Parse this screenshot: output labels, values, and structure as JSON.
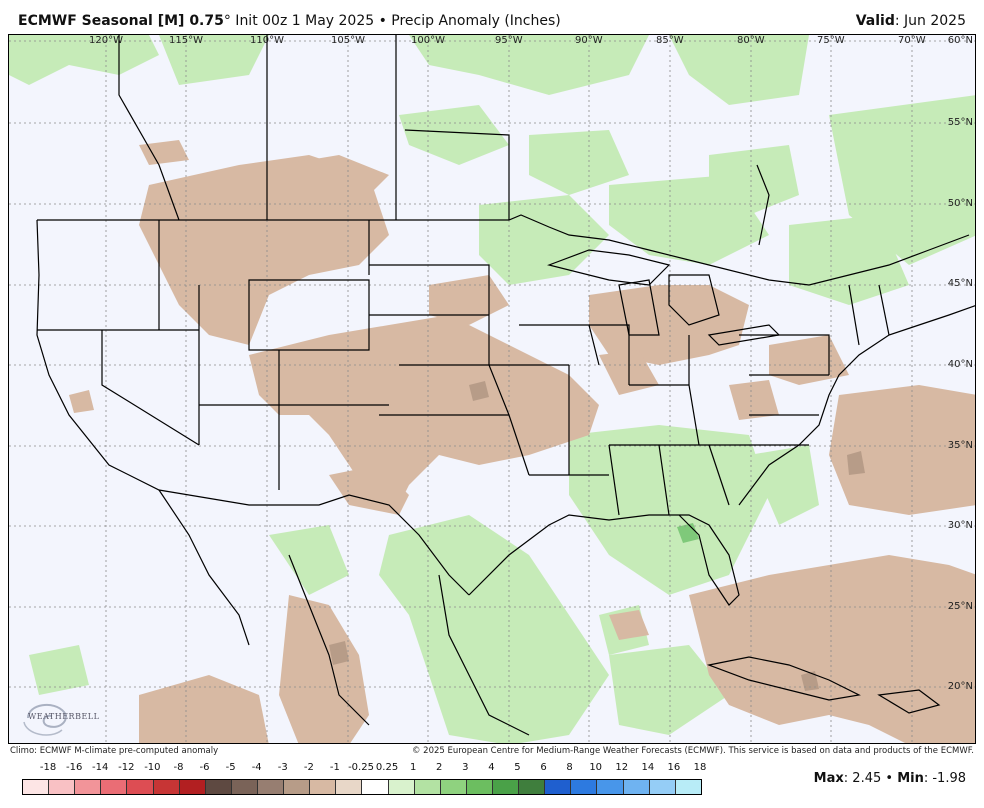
{
  "header": {
    "title_bold": "ECMWF Seasonal [M] 0.75",
    "title_degree": "°",
    "title_rest": " Init 00z 1 May 2025 • Precip Anomaly (Inches)",
    "valid_label": "Valid",
    "valid_value": ": Jun 2025"
  },
  "map": {
    "lon_labels": [
      "120°W",
      "115°W",
      "110°W",
      "105°W",
      "100°W",
      "95°W",
      "90°W",
      "85°W",
      "80°W",
      "75°W",
      "70°W"
    ],
    "lat_labels": [
      "60°N",
      "55°N",
      "50°N",
      "45°N",
      "40°N",
      "35°N",
      "30°N",
      "25°N",
      "20°N"
    ],
    "colors": {
      "ocean_land_bg": "#f3f5fd",
      "dry_anomaly": "#d7b9a3",
      "dry_anomaly_strong": "#b79c88",
      "wet_anomaly": "#c6ebb8",
      "wet_anomaly_strong": "#7fc97a"
    }
  },
  "footer": {
    "left": "Climo: ECMWF M-climate pre-computed anomaly",
    "right": "© 2025 European Centre for Medium-Range Weather Forecasts (ECMWF). This service is based on data and products of the ECMWF."
  },
  "colorbar": {
    "labels": [
      "-18",
      "-16",
      "-14",
      "-12",
      "-10",
      "-8",
      "-6",
      "-5",
      "-4",
      "-3",
      "-2",
      "-1",
      "-0.25",
      "0.25",
      "1",
      "2",
      "3",
      "4",
      "5",
      "6",
      "8",
      "10",
      "12",
      "14",
      "16",
      "18"
    ],
    "colors": [
      "#fde5e5",
      "#f9c1c4",
      "#f29499",
      "#ea6d75",
      "#dd4d53",
      "#c73535",
      "#b21f21",
      "#5e4941",
      "#7a6358",
      "#977e71",
      "#b79c88",
      "#d7b9a3",
      "#e8d7c8",
      "#ffffff",
      "#d9f2cd",
      "#b3e2a3",
      "#8fd27f",
      "#6cbe60",
      "#4aa148",
      "#3f7e3d",
      "#1f5fcf",
      "#2d7ae0",
      "#4896ea",
      "#6fb3f1",
      "#95cdf6",
      "#b8ecf7"
    ]
  },
  "stats": {
    "max_label": "Max",
    "max_value": ": 2.45",
    "sep": " • ",
    "min_label": "Min",
    "min_value": ": -1.98"
  },
  "logo": {
    "text": "WEATHERBELL"
  }
}
